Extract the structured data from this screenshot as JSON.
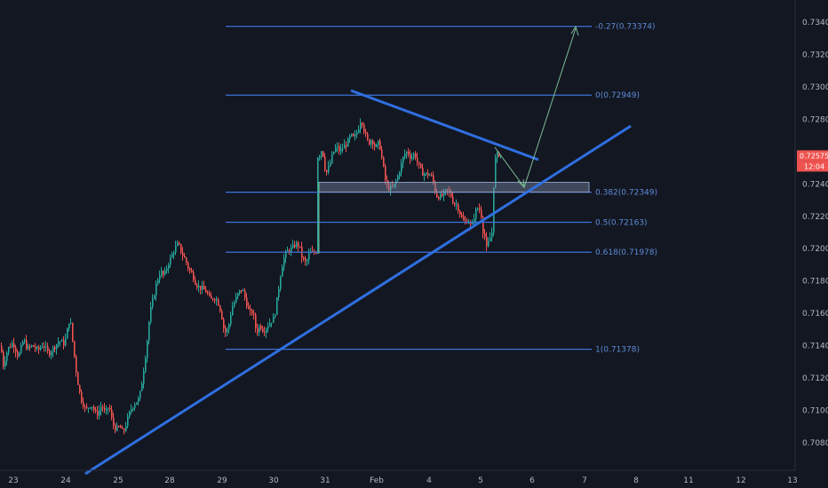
{
  "colors": {
    "background": "#131722",
    "up": "#26a69a",
    "down": "#ef5350",
    "drawing": "#2f6fe0",
    "fib": "#3d73d8",
    "arrow": "#7dbb94",
    "axis_text": "#b2b5be",
    "price_tag": "#ef5350",
    "countdown_tag": "#ef5350"
  },
  "price_axis": {
    "labels": [
      "0.73400",
      "0.73200",
      "0.73000",
      "0.72800",
      "0.72400",
      "0.72200",
      "0.72000",
      "0.71800",
      "0.71600",
      "0.71400",
      "0.71200",
      "0.71000",
      "0.70800"
    ],
    "current_price": "0.72575",
    "countdown": "12:04"
  },
  "time_axis": {
    "labels": [
      "23",
      "24",
      "25",
      "28",
      "29",
      "30",
      "31",
      "Feb",
      "4",
      "5",
      "6",
      "7",
      "8",
      "11",
      "12",
      "13"
    ]
  },
  "fib_levels": [
    {
      "ratio": "-0.27",
      "label": "-0.27(0.73374)",
      "price": 0.73374
    },
    {
      "ratio": "0",
      "label": "0(0.72949)",
      "price": 0.72949
    },
    {
      "ratio": "0.382",
      "label": "0.382(0.72349)",
      "price": 0.72349
    },
    {
      "ratio": "0.5",
      "label": "0.5(0.72163)",
      "price": 0.72163
    },
    {
      "ratio": "0.618",
      "label": "0.618(0.71978)",
      "price": 0.71978
    },
    {
      "ratio": "1",
      "label": "1(0.71378)",
      "price": 0.71378
    }
  ],
  "chart_data": {
    "type": "candlestick",
    "instrument_axis": "price",
    "ylim": [
      0.7064,
      0.7362
    ],
    "x_labels": [
      "23",
      "24",
      "25",
      "28",
      "29",
      "30",
      "31",
      "Feb",
      "4",
      "5",
      "6",
      "7",
      "8",
      "11",
      "12",
      "13"
    ],
    "close_path": [
      [
        0,
        0.714
      ],
      [
        3,
        0.7128
      ],
      [
        8,
        0.7138
      ],
      [
        14,
        0.7142
      ],
      [
        20,
        0.7133
      ],
      [
        26,
        0.7144
      ],
      [
        30,
        0.7138
      ],
      [
        36,
        0.714
      ],
      [
        42,
        0.7137
      ],
      [
        48,
        0.7141
      ],
      [
        54,
        0.7135
      ],
      [
        60,
        0.7139
      ],
      [
        66,
        0.7143
      ],
      [
        72,
        0.7141
      ],
      [
        78,
        0.7158
      ],
      [
        82,
        0.7138
      ],
      [
        86,
        0.712
      ],
      [
        90,
        0.7108
      ],
      [
        96,
        0.71
      ],
      [
        102,
        0.7104
      ],
      [
        108,
        0.7097
      ],
      [
        114,
        0.7103
      ],
      [
        118,
        0.7098
      ],
      [
        122,
        0.7103
      ],
      [
        126,
        0.7092
      ],
      [
        130,
        0.7088
      ],
      [
        134,
        0.709
      ],
      [
        138,
        0.7086
      ],
      [
        142,
        0.7093
      ],
      [
        146,
        0.71
      ],
      [
        150,
        0.7104
      ],
      [
        156,
        0.7107
      ],
      [
        160,
        0.7121
      ],
      [
        164,
        0.7138
      ],
      [
        168,
        0.716
      ],
      [
        172,
        0.717
      ],
      [
        176,
        0.718
      ],
      [
        180,
        0.7186
      ],
      [
        184,
        0.7183
      ],
      [
        188,
        0.719
      ],
      [
        192,
        0.7195
      ],
      [
        196,
        0.72
      ],
      [
        200,
        0.7203
      ],
      [
        204,
        0.7197
      ],
      [
        208,
        0.7193
      ],
      [
        212,
        0.7187
      ],
      [
        216,
        0.7184
      ],
      [
        220,
        0.7178
      ],
      [
        224,
        0.7176
      ],
      [
        228,
        0.7175
      ],
      [
        232,
        0.7173
      ],
      [
        236,
        0.7168
      ],
      [
        240,
        0.717
      ],
      [
        244,
        0.7168
      ],
      [
        248,
        0.7161
      ],
      [
        252,
        0.7148
      ],
      [
        256,
        0.715
      ],
      [
        260,
        0.7163
      ],
      [
        264,
        0.7168
      ],
      [
        268,
        0.7173
      ],
      [
        272,
        0.7175
      ],
      [
        276,
        0.7168
      ],
      [
        280,
        0.716
      ],
      [
        284,
        0.7161
      ],
      [
        288,
        0.7148
      ],
      [
        292,
        0.7153
      ],
      [
        296,
        0.7149
      ],
      [
        300,
        0.7152
      ],
      [
        304,
        0.7155
      ],
      [
        308,
        0.7157
      ],
      [
        312,
        0.7172
      ],
      [
        316,
        0.7188
      ],
      [
        320,
        0.7196
      ],
      [
        324,
        0.7199
      ],
      [
        328,
        0.72
      ],
      [
        332,
        0.7203
      ],
      [
        336,
        0.7202
      ],
      [
        340,
        0.7193
      ],
      [
        344,
        0.7191
      ],
      [
        348,
        0.7198
      ],
      [
        352,
        0.7197
      ],
      [
        356,
        0.7199
      ],
      [
        358,
        0.7257
      ],
      [
        362,
        0.7262
      ],
      [
        366,
        0.7246
      ],
      [
        370,
        0.7251
      ],
      [
        374,
        0.7259
      ],
      [
        378,
        0.7263
      ],
      [
        382,
        0.726
      ],
      [
        386,
        0.7263
      ],
      [
        390,
        0.7265
      ],
      [
        394,
        0.727
      ],
      [
        398,
        0.7268
      ],
      [
        402,
        0.7273
      ],
      [
        406,
        0.7281
      ],
      [
        410,
        0.7271
      ],
      [
        414,
        0.7265
      ],
      [
        418,
        0.7268
      ],
      [
        422,
        0.7262
      ],
      [
        426,
        0.7266
      ],
      [
        430,
        0.7253
      ],
      [
        434,
        0.7239
      ],
      [
        438,
        0.7237
      ],
      [
        442,
        0.7238
      ],
      [
        446,
        0.7243
      ],
      [
        450,
        0.725
      ],
      [
        454,
        0.7258
      ],
      [
        458,
        0.726
      ],
      [
        462,
        0.7256
      ],
      [
        466,
        0.7259
      ],
      [
        470,
        0.7252
      ],
      [
        474,
        0.7247
      ],
      [
        478,
        0.7246
      ],
      [
        482,
        0.7246
      ],
      [
        486,
        0.7244
      ],
      [
        490,
        0.7233
      ],
      [
        494,
        0.7232
      ],
      [
        498,
        0.7233
      ],
      [
        502,
        0.7236
      ],
      [
        506,
        0.7234
      ],
      [
        510,
        0.7228
      ],
      [
        514,
        0.7227
      ],
      [
        518,
        0.722
      ],
      [
        522,
        0.7216
      ],
      [
        526,
        0.7218
      ],
      [
        530,
        0.7213
      ],
      [
        534,
        0.7222
      ],
      [
        538,
        0.7226
      ],
      [
        542,
        0.7219
      ],
      [
        544,
        0.7211
      ],
      [
        547,
        0.72
      ],
      [
        550,
        0.7205
      ],
      [
        553,
        0.721
      ],
      [
        556,
        0.7254
      ],
      [
        560,
        0.7259
      ],
      [
        564,
        0.7257
      ]
    ],
    "fib_retracement": {
      "level_0": 0.72949,
      "level_1": 0.71378
    },
    "zone": {
      "top": 0.7241,
      "bottom": 0.7235
    }
  }
}
